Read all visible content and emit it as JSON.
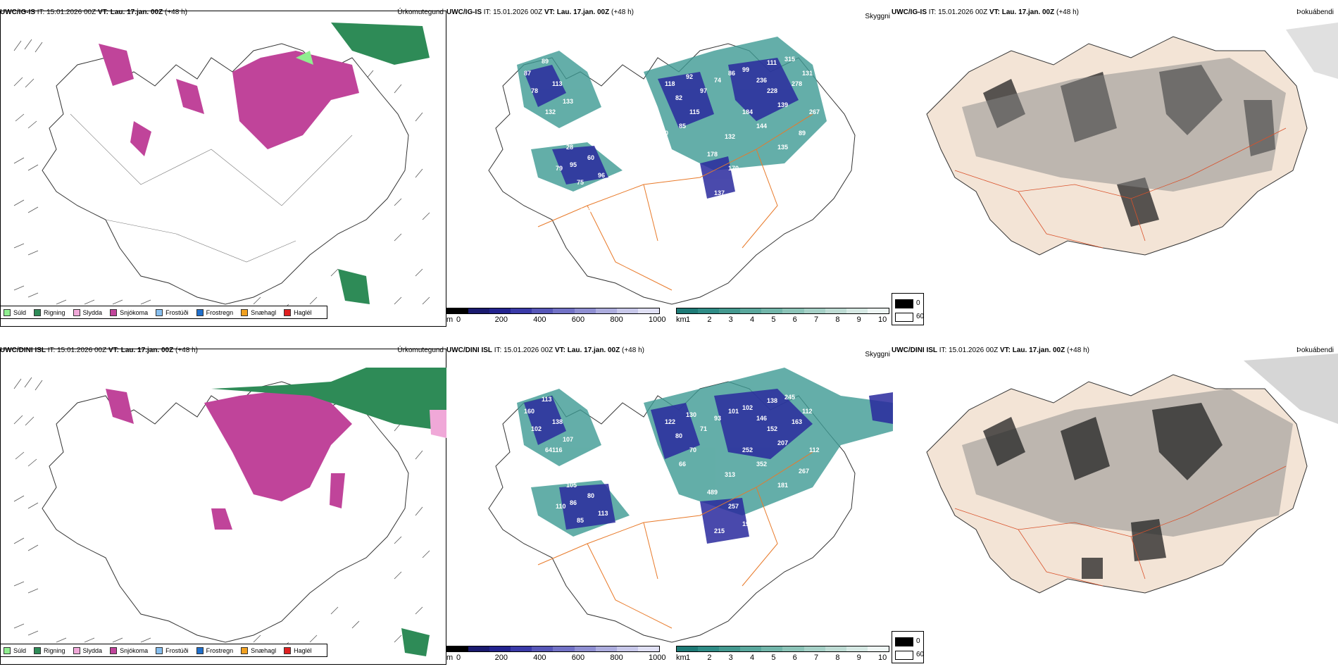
{
  "rows": [
    {
      "model": "UWC/IG-IS",
      "it_label": "IT: 15.01.2026 00Z",
      "vt_label": "VT: Lau. 17.jan. 00Z",
      "lead": "(+48 h)",
      "precip_title": "Úrkomutegund",
      "cloud_title": "Skyggni",
      "fog_title": "Þokuábendi",
      "cloud_values": [
        "87",
        "89",
        "78",
        "113",
        "133",
        "132",
        "111",
        "105",
        "28",
        "79",
        "95",
        "60",
        "96",
        "75",
        "118",
        "82",
        "92",
        "115",
        "85",
        "97",
        "74",
        "86",
        "99",
        "236",
        "228",
        "139",
        "184",
        "144",
        "132",
        "178",
        "170",
        "95",
        "137",
        "135",
        "89",
        "267",
        "278",
        "111",
        "315",
        "131",
        "120",
        "62",
        "76",
        "64",
        "131",
        "29",
        "111",
        "108",
        "22"
      ]
    },
    {
      "model": "UWC/DINI ISL",
      "it_label": "IT: 15.01.2026 00Z",
      "vt_label": "VT: Lau. 17.jan. 00Z",
      "lead": "(+48 h)",
      "precip_title": "Úrkomutegund",
      "cloud_title": "Skyggni",
      "fog_title": "Þokuábendi",
      "cloud_values": [
        "160",
        "113",
        "102",
        "138",
        "107",
        "64116",
        "95",
        "79",
        "105",
        "110",
        "86",
        "80",
        "113",
        "85",
        "122",
        "80",
        "130",
        "70",
        "66",
        "71",
        "93",
        "101",
        "102",
        "146",
        "152",
        "207",
        "252",
        "352",
        "313",
        "489",
        "257",
        "196",
        "215",
        "181",
        "267",
        "112",
        "163",
        "138",
        "245",
        "112",
        "59",
        "131",
        "128"
      ]
    }
  ],
  "precip_legend": [
    {
      "label": "Súld",
      "color": "#90ee90"
    },
    {
      "label": "Rigning",
      "color": "#2e8b57"
    },
    {
      "label": "Slydda",
      "color": "#f0a8d8"
    },
    {
      "label": "Snjókoma",
      "color": "#c0449a"
    },
    {
      "label": "Frostúði",
      "color": "#87bfef"
    },
    {
      "label": "Frostregn",
      "color": "#1f6fcc"
    },
    {
      "label": "Snæhagl",
      "color": "#f0a020"
    },
    {
      "label": "Haglél",
      "color": "#e02020"
    }
  ],
  "cloud_base_bar": {
    "unit": "m",
    "ticks": [
      "0",
      "200",
      "400",
      "600",
      "800",
      "1000"
    ],
    "colors": [
      "#000000",
      "#1a1a6e",
      "#23238f",
      "#3a3aa8",
      "#5757b8",
      "#7272c6",
      "#8f8fd2",
      "#adadde",
      "#c8c8ea",
      "#e0e0f4"
    ]
  },
  "visibility_bar": {
    "unit": "km",
    "ticks": [
      "1",
      "2",
      "3",
      "4",
      "5",
      "6",
      "7",
      "8",
      "9",
      "10"
    ],
    "colors": [
      "#1e7a76",
      "#2f8c86",
      "#44998f",
      "#5aa89d",
      "#72b6aa",
      "#8cc4b8",
      "#a6d1c7",
      "#bedcd4",
      "#d6e9e4",
      "#eef6f4"
    ]
  },
  "fog_legend": {
    "high": "0",
    "low": "60"
  },
  "colors": {
    "snow": "#c0449a",
    "rain": "#2e8b57",
    "drizzle": "#90ee90",
    "cloud": "#2a2a9e",
    "teal": "#3d9a93",
    "road": "#e87a2a",
    "land": "#f3e4d6"
  }
}
